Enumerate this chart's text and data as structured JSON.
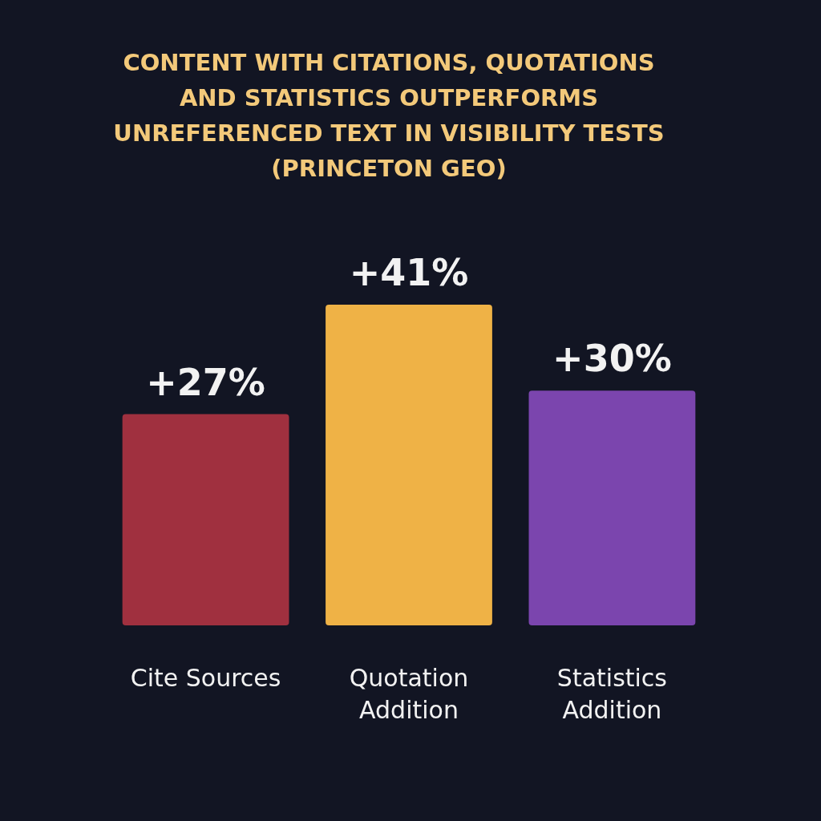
{
  "chart_data": {
    "type": "bar",
    "title": "CONTENT WITH CITATIONS, QUOTATIONS AND STATISTICS OUTPERFORMS UNREFERENCED TEXT IN VISIBILITY TESTS (PRINCETON GEO)",
    "categories": [
      "Cite Sources",
      "Quotation Addition",
      "Statistics Addition"
    ],
    "values": [
      27,
      41,
      30
    ],
    "colors": [
      "#a0303f",
      "#efb246",
      "#7b45ae"
    ],
    "value_labels": [
      "+27%",
      "+41%",
      "+30%"
    ]
  }
}
